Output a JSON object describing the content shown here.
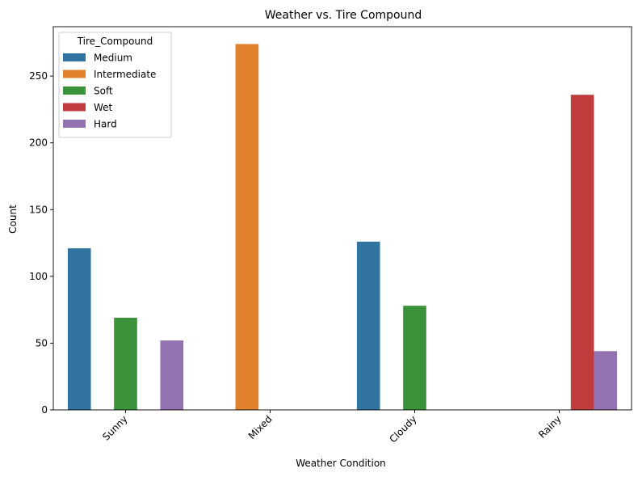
{
  "chart_data": {
    "type": "bar",
    "title": "Weather vs. Tire Compound",
    "xlabel": "Weather Condition",
    "ylabel": "Count",
    "categories": [
      "Sunny",
      "Mixed",
      "Cloudy",
      "Rainy"
    ],
    "ylim": [
      0,
      287
    ],
    "yticks": [
      0,
      50,
      100,
      150,
      200,
      250
    ],
    "grid": false,
    "legend": {
      "title": "Tire_Compound",
      "placement": "top-left"
    },
    "series": [
      {
        "name": "Medium",
        "color": "#3274a1",
        "values": [
          121,
          0,
          126,
          0
        ]
      },
      {
        "name": "Intermediate",
        "color": "#e1812c",
        "values": [
          0,
          274,
          0,
          0
        ]
      },
      {
        "name": "Soft",
        "color": "#3a923a",
        "values": [
          69,
          0,
          78,
          0
        ]
      },
      {
        "name": "Wet",
        "color": "#c03d3e",
        "values": [
          0,
          0,
          0,
          236
        ]
      },
      {
        "name": "Hard",
        "color": "#9372b2",
        "values": [
          52,
          0,
          0,
          44
        ]
      }
    ]
  }
}
